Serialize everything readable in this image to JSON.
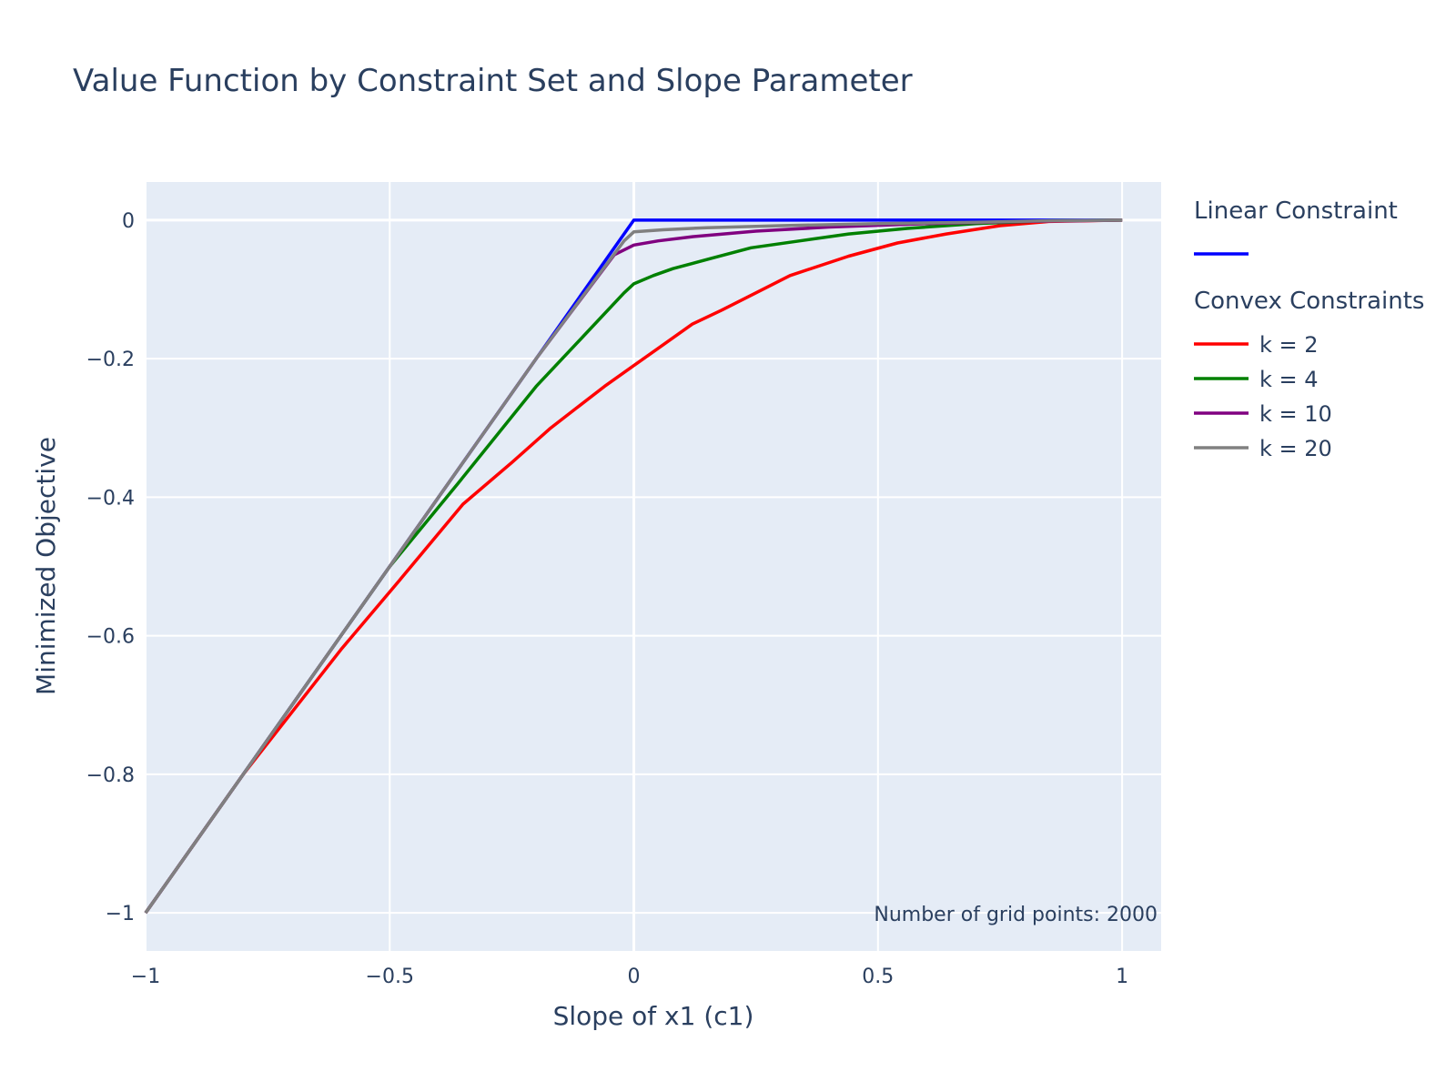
{
  "chart_data": {
    "type": "line",
    "title": "Value Function by Constraint Set and Slope Parameter",
    "xlabel": "Slope of x1 (c1)",
    "ylabel": "Minimized Objective",
    "xlim": [
      -1,
      1.08
    ],
    "ylim": [
      -1.055,
      0.055
    ],
    "xticks": [
      -1,
      -0.5,
      0,
      0.5,
      1
    ],
    "xtick_labels": [
      "−1",
      "−0.5",
      "0",
      "0.5",
      "1"
    ],
    "yticks": [
      0,
      -0.2,
      -0.4,
      -0.6,
      -0.8,
      -1
    ],
    "ytick_labels": [
      "0",
      "−0.2",
      "−0.4",
      "−0.6",
      "−0.8",
      "−1"
    ],
    "grid": true,
    "legend_position": "right",
    "annotation": "Number of grid points: 2000",
    "legend_groups": [
      {
        "title": "Linear Constraint",
        "series": [
          0
        ]
      },
      {
        "title": "Convex Constraints",
        "series": [
          1,
          2,
          3,
          4
        ]
      }
    ],
    "series": [
      {
        "name": "",
        "color": "#0000ff",
        "x": [
          -1,
          0,
          1
        ],
        "y": [
          -1,
          0,
          0
        ]
      },
      {
        "name": "k = 2",
        "color": "#ff0000",
        "x": [
          -1,
          -0.8,
          -0.6,
          -0.48,
          -0.35,
          -0.25,
          -0.17,
          -0.06,
          0,
          0.02,
          0.12,
          0.18,
          0.25,
          0.32,
          0.44,
          0.54,
          0.64,
          0.75,
          0.85,
          1
        ],
        "y": [
          -1,
          -0.8,
          -0.62,
          -0.52,
          -0.41,
          -0.35,
          -0.3,
          -0.24,
          -0.21,
          -0.2,
          -0.15,
          -0.13,
          -0.105,
          -0.08,
          -0.052,
          -0.033,
          -0.02,
          -0.008,
          -0.002,
          0
        ]
      },
      {
        "name": "k = 4",
        "color": "#008000",
        "x": [
          -1,
          -0.8,
          -0.6,
          -0.5,
          -0.36,
          -0.2,
          -0.1,
          -0.02,
          0,
          0.04,
          0.08,
          0.16,
          0.24,
          0.34,
          0.44,
          0.56,
          0.7,
          0.85,
          1
        ],
        "y": [
          -1,
          -0.8,
          -0.6,
          -0.5,
          -0.38,
          -0.24,
          -0.165,
          -0.105,
          -0.092,
          -0.08,
          -0.07,
          -0.055,
          -0.04,
          -0.03,
          -0.02,
          -0.012,
          -0.005,
          -0.001,
          0
        ]
      },
      {
        "name": "k = 10",
        "color": "#800080",
        "x": [
          -1,
          -0.8,
          -0.6,
          -0.4,
          -0.2,
          -0.04,
          0,
          0.05,
          0.12,
          0.25,
          0.4,
          0.6,
          0.8,
          1
        ],
        "y": [
          -1,
          -0.8,
          -0.6,
          -0.4,
          -0.2,
          -0.05,
          -0.036,
          -0.03,
          -0.024,
          -0.016,
          -0.01,
          -0.005,
          -0.002,
          0
        ]
      },
      {
        "name": "k = 20",
        "color": "#808080",
        "x": [
          -1,
          -0.8,
          -0.6,
          -0.4,
          -0.2,
          -0.02,
          0,
          0.06,
          0.15,
          0.3,
          0.5,
          0.7,
          0.85,
          1
        ],
        "y": [
          -1,
          -0.8,
          -0.6,
          -0.4,
          -0.2,
          -0.03,
          -0.017,
          -0.014,
          -0.011,
          -0.008,
          -0.005,
          -0.003,
          -0.001,
          0
        ]
      }
    ]
  }
}
